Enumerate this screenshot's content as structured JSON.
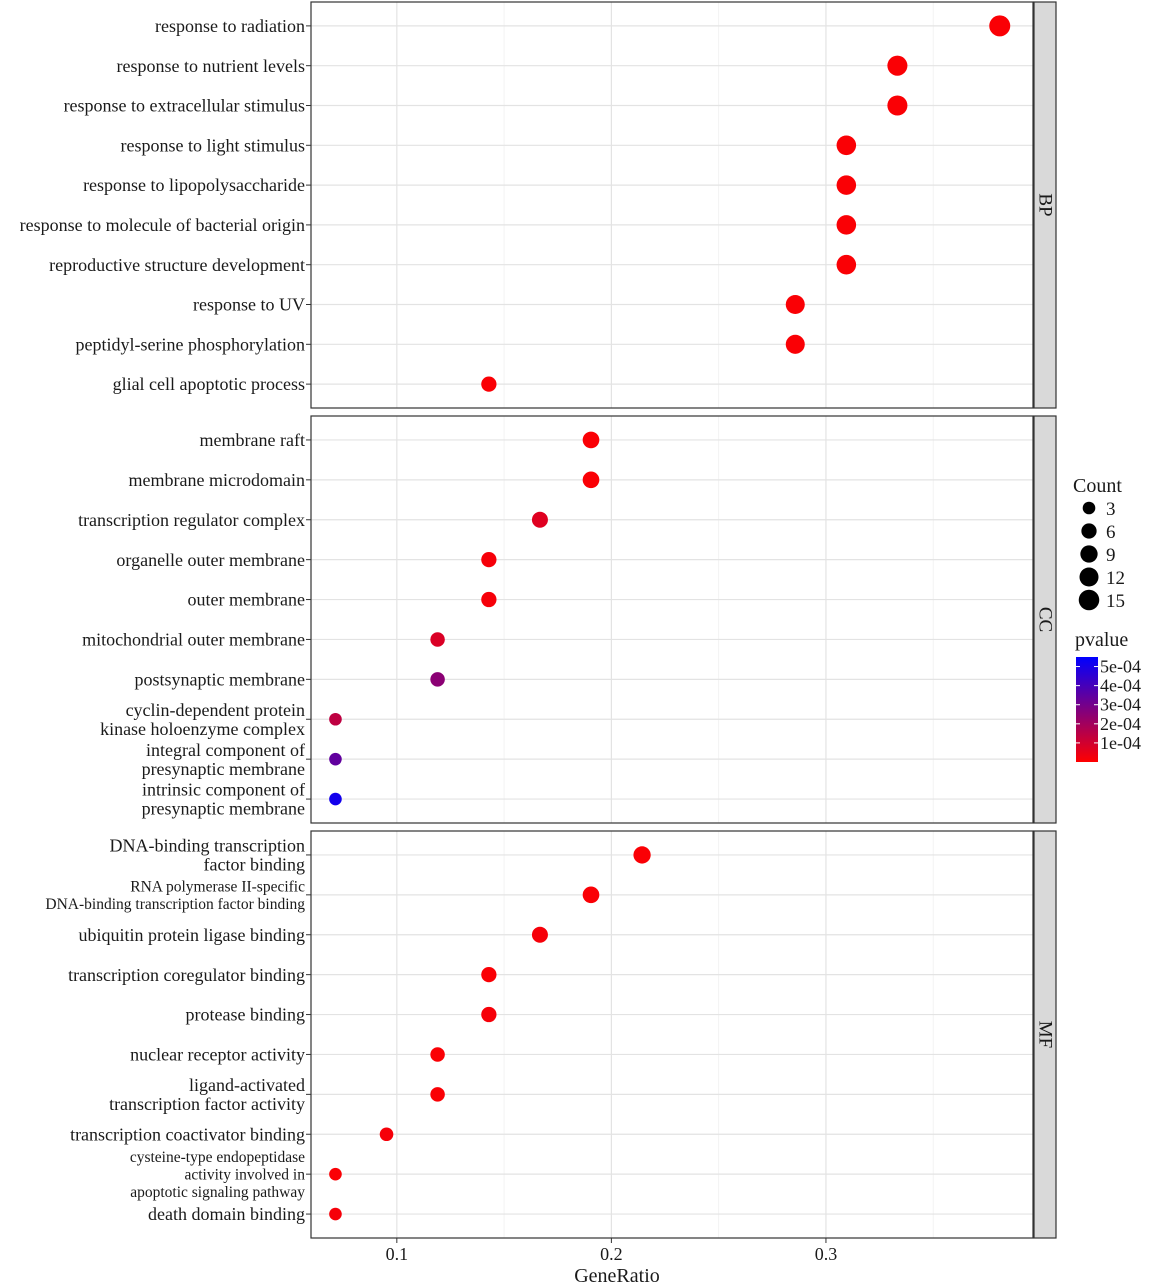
{
  "chart_data": {
    "type": "scatter",
    "subtype": "faceted-dotplot",
    "xlabel": "GeneRatio",
    "xlim": [
      0.06,
      0.3965
    ],
    "xticks": [
      0.1,
      0.2,
      0.3
    ],
    "xtick_labels": [
      "0.1",
      "0.2",
      "0.3"
    ],
    "grid": true,
    "legend_position": "right",
    "facets": [
      {
        "label": "BP",
        "rows": [
          {
            "lines": [
              "response to radiation"
            ],
            "size": "normal",
            "gene_ratio": 0.381,
            "count": 16,
            "pvalue": 1e-05
          },
          {
            "lines": [
              "response to nutrient levels"
            ],
            "size": "normal",
            "gene_ratio": 0.3333,
            "count": 14,
            "pvalue": 1e-05
          },
          {
            "lines": [
              "response to extracellular stimulus"
            ],
            "size": "normal",
            "gene_ratio": 0.3333,
            "count": 14,
            "pvalue": 1e-05
          },
          {
            "lines": [
              "response to light stimulus"
            ],
            "size": "normal",
            "gene_ratio": 0.3095,
            "count": 13,
            "pvalue": 1e-05
          },
          {
            "lines": [
              "response to lipopolysaccharide"
            ],
            "size": "normal",
            "gene_ratio": 0.3095,
            "count": 13,
            "pvalue": 1e-05
          },
          {
            "lines": [
              "response to molecule of bacterial origin"
            ],
            "size": "normal",
            "gene_ratio": 0.3095,
            "count": 13,
            "pvalue": 1e-05
          },
          {
            "lines": [
              "reproductive structure development"
            ],
            "size": "normal",
            "gene_ratio": 0.3095,
            "count": 13,
            "pvalue": 1e-05
          },
          {
            "lines": [
              "response to UV"
            ],
            "size": "normal",
            "gene_ratio": 0.2857,
            "count": 12,
            "pvalue": 1e-05
          },
          {
            "lines": [
              "peptidyl-serine phosphorylation"
            ],
            "size": "normal",
            "gene_ratio": 0.2857,
            "count": 12,
            "pvalue": 1e-05
          },
          {
            "lines": [
              "glial cell apoptotic process"
            ],
            "size": "normal",
            "gene_ratio": 0.1429,
            "count": 6,
            "pvalue": 1e-05
          }
        ]
      },
      {
        "label": "CC",
        "rows": [
          {
            "lines": [
              "membrane raft"
            ],
            "size": "normal",
            "gene_ratio": 0.1905,
            "count": 8,
            "pvalue": 1e-05
          },
          {
            "lines": [
              "membrane microdomain"
            ],
            "size": "normal",
            "gene_ratio": 0.1905,
            "count": 8,
            "pvalue": 1e-05
          },
          {
            "lines": [
              "transcription regulator complex"
            ],
            "size": "normal",
            "gene_ratio": 0.1667,
            "count": 7,
            "pvalue": 7e-05
          },
          {
            "lines": [
              "organelle outer membrane"
            ],
            "size": "normal",
            "gene_ratio": 0.1429,
            "count": 6,
            "pvalue": 2e-05
          },
          {
            "lines": [
              "outer membrane"
            ],
            "size": "normal",
            "gene_ratio": 0.1429,
            "count": 6,
            "pvalue": 2e-05
          },
          {
            "lines": [
              "mitochondrial outer membrane"
            ],
            "size": "normal",
            "gene_ratio": 0.119,
            "count": 5,
            "pvalue": 8e-05
          },
          {
            "lines": [
              "postsynaptic membrane"
            ],
            "size": "normal",
            "gene_ratio": 0.119,
            "count": 5,
            "pvalue": 0.00025
          },
          {
            "lines": [
              "cyclin-dependent protein",
              "kinase holoenzyme complex"
            ],
            "size": "normal",
            "gene_ratio": 0.0714,
            "count": 3,
            "pvalue": 0.00014
          },
          {
            "lines": [
              "integral component of",
              "presynaptic membrane"
            ],
            "size": "normal",
            "gene_ratio": 0.0714,
            "count": 3,
            "pvalue": 0.00034
          },
          {
            "lines": [
              "intrinsic component of",
              "presynaptic membrane"
            ],
            "size": "normal",
            "gene_ratio": 0.0714,
            "count": 3,
            "pvalue": 0.00051
          }
        ]
      },
      {
        "label": "MF",
        "rows": [
          {
            "lines": [
              "DNA-binding transcription",
              "factor binding"
            ],
            "size": "normal",
            "gene_ratio": 0.2143,
            "count": 9,
            "pvalue": 1e-05
          },
          {
            "lines": [
              "RNA polymerase II-specific",
              "DNA-binding transcription factor binding"
            ],
            "size": "small",
            "gene_ratio": 0.1905,
            "count": 8,
            "pvalue": 1e-05
          },
          {
            "lines": [
              "ubiquitin protein ligase binding"
            ],
            "size": "normal",
            "gene_ratio": 0.1667,
            "count": 7,
            "pvalue": 2e-05
          },
          {
            "lines": [
              "transcription coregulator binding"
            ],
            "size": "normal",
            "gene_ratio": 0.1429,
            "count": 6,
            "pvalue": 1e-05
          },
          {
            "lines": [
              "protease binding"
            ],
            "size": "normal",
            "gene_ratio": 0.1429,
            "count": 6,
            "pvalue": 2e-05
          },
          {
            "lines": [
              "nuclear receptor activity"
            ],
            "size": "normal",
            "gene_ratio": 0.119,
            "count": 5,
            "pvalue": 1e-05
          },
          {
            "lines": [
              "ligand-activated",
              "transcription factor activity"
            ],
            "size": "normal",
            "gene_ratio": 0.119,
            "count": 5,
            "pvalue": 1e-05
          },
          {
            "lines": [
              "transcription coactivator binding"
            ],
            "size": "normal",
            "gene_ratio": 0.0952,
            "count": 4,
            "pvalue": 2e-05
          },
          {
            "lines": [
              "cysteine-type endopeptidase",
              "activity involved in",
              "apoptotic signaling pathway"
            ],
            "size": "small",
            "gene_ratio": 0.0714,
            "count": 3,
            "pvalue": 1e-05
          },
          {
            "lines": [
              "death domain binding"
            ],
            "size": "normal",
            "gene_ratio": 0.0714,
            "count": 3,
            "pvalue": 2e-05
          }
        ]
      }
    ],
    "size_legend": {
      "title": "Count",
      "breaks": [
        3,
        6,
        9,
        12,
        15
      ],
      "labels": [
        "3",
        "6",
        "9",
        "12",
        "15"
      ]
    },
    "color_legend": {
      "title": "pvalue",
      "low_color": "#ff0000",
      "high_color": "#0000ff",
      "breaks": [
        0.0005,
        0.0004,
        0.0003,
        0.0002,
        0.0001
      ],
      "labels": [
        "5e-04",
        "4e-04",
        "3e-04",
        "2e-04",
        "1e-04"
      ],
      "range": [
        0.0,
        0.00055
      ]
    }
  }
}
